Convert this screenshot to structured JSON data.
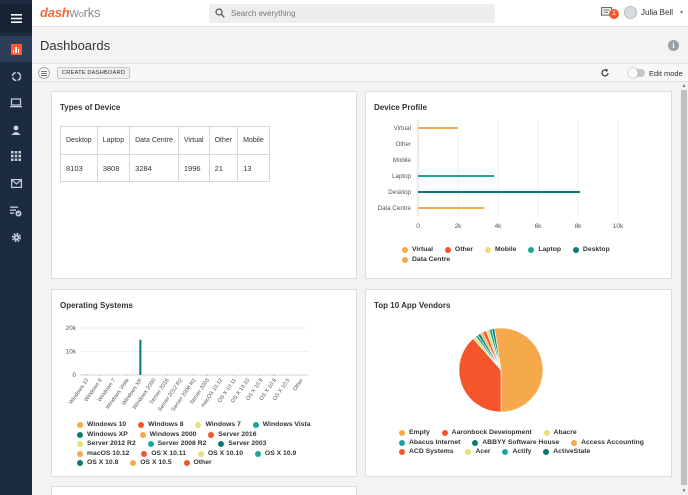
{
  "app": {
    "logo_part1": "dash",
    "logo_part2": "w",
    "logo_part3": "rks",
    "search_placeholder": "Search everything",
    "notification_count": "1",
    "user_name": "Julia Bell"
  },
  "sidebar": {
    "items": [
      {
        "name": "menu-icon"
      },
      {
        "name": "dashboards-icon",
        "active": true
      },
      {
        "name": "projects-icon"
      },
      {
        "name": "devices-icon"
      },
      {
        "name": "users-icon"
      },
      {
        "name": "applications-icon"
      },
      {
        "name": "mailboxes-icon"
      },
      {
        "name": "evergreen-icon"
      },
      {
        "name": "settings-icon"
      }
    ]
  },
  "page": {
    "title": "Dashboards",
    "create_label": "CREATE DASHBOARD",
    "edit_mode_label": "Edit mode"
  },
  "colors": {
    "orange": "#f5a94a",
    "red": "#f4562c",
    "yellow": "#e2e277",
    "teal": "#1ea59b",
    "darkteal": "#0d7a72",
    "accent": "#ff5a36"
  },
  "widgets": {
    "types_of_device": {
      "title": "Types of Device",
      "headers": [
        "Desktop",
        "Laptop",
        "Data Centre",
        "Virtual",
        "Other",
        "Mobile"
      ],
      "values": [
        "8103",
        "3808",
        "3284",
        "1996",
        "21",
        "13"
      ]
    },
    "device_profile": {
      "title": "Device Profile",
      "legend": [
        "Virtual",
        "Other",
        "Mobile",
        "Laptop",
        "Desktop",
        "Data Centre"
      ]
    },
    "operating_systems": {
      "title": "Operating Systems",
      "legend": [
        "Windows 10",
        "Windows 8",
        "Windows 7",
        "Windows Vista",
        "Windows XP",
        "Windows 2000",
        "Server 2016",
        "Server 2012 R2",
        "Server 2008 R2",
        "Server 2003",
        "macOS 10.12",
        "OS X 10.11",
        "OS X 10.10",
        "OS X 10.9",
        "OS X 10.8",
        "OS X 10.5",
        "Other"
      ]
    },
    "top_app_vendors": {
      "title": "Top 10 App Vendors",
      "legend": [
        "Empty",
        "Aaronbock Development",
        "Abacre",
        "Abacus Internet",
        "ABBYY Software House",
        "Access Accounting",
        "ACD Systems",
        "Acer",
        "Actify",
        "ActiveState"
      ]
    }
  },
  "chart_data": [
    {
      "type": "bar",
      "title": "Device Profile",
      "orientation": "horizontal",
      "categories": [
        "Virtual",
        "Other",
        "Mobile",
        "Laptop",
        "Desktop",
        "Data Centre"
      ],
      "values": [
        1996,
        21,
        13,
        3808,
        8103,
        3284
      ],
      "colors": [
        "#f5a94a",
        "#f4562c",
        "#e2e277",
        "#1ea59b",
        "#0d7a72",
        "#f5a94a"
      ],
      "xlim": [
        0,
        10000
      ],
      "x_ticks": [
        "0",
        "2k",
        "4k",
        "6k",
        "8k",
        "10k"
      ],
      "grid": true,
      "legend": "bottom"
    },
    {
      "type": "bar",
      "title": "Operating Systems",
      "categories": [
        "Windows 10",
        "Windows 8",
        "Windows 7",
        "Windows Vista",
        "Windows XP",
        "Windows 2000",
        "Server 2016",
        "Server 2012 R2",
        "Server 2008 R2",
        "Server 2003",
        "macOS 10.12",
        "OS X 10.11",
        "OS X 10.10",
        "OS X 10.9",
        "OS X 10.8",
        "OS X 10.5",
        "Other"
      ],
      "values": [
        350,
        30,
        250,
        40,
        15000,
        20,
        150,
        80,
        50,
        30,
        10,
        10,
        10,
        10,
        10,
        10,
        20
      ],
      "colors": [
        "#f5a94a",
        "#f4562c",
        "#e2e277",
        "#1ea59b",
        "#0d7a72",
        "#f5a94a",
        "#f4562c",
        "#e2e277",
        "#1ea59b",
        "#0d7a72",
        "#f5a94a",
        "#f4562c",
        "#e2e277",
        "#1ea59b",
        "#0d7a72",
        "#f5a94a",
        "#f4562c"
      ],
      "ylim": [
        0,
        20000
      ],
      "y_ticks": [
        "0",
        "10k",
        "20k"
      ],
      "grid": true,
      "legend": "bottom"
    },
    {
      "type": "pie",
      "title": "Top 10 App Vendors",
      "labels": [
        "Empty",
        "Aaronbock Development",
        "Abacre",
        "Abacus Internet",
        "ABBYY Software House",
        "Access Accounting",
        "ACD Systems",
        "Acer",
        "Actify",
        "ActiveState"
      ],
      "values": [
        52.5,
        38.5,
        1.2,
        1.0,
        1.1,
        1.0,
        1.4,
        1.2,
        1.1,
        1.0
      ],
      "colors": [
        "#f5a94a",
        "#f4562c",
        "#e2e277",
        "#1ea59b",
        "#0d7a72",
        "#f5a94a",
        "#f4562c",
        "#e2e277",
        "#1ea59b",
        "#0d7a72"
      ],
      "legend": "bottom"
    }
  ]
}
